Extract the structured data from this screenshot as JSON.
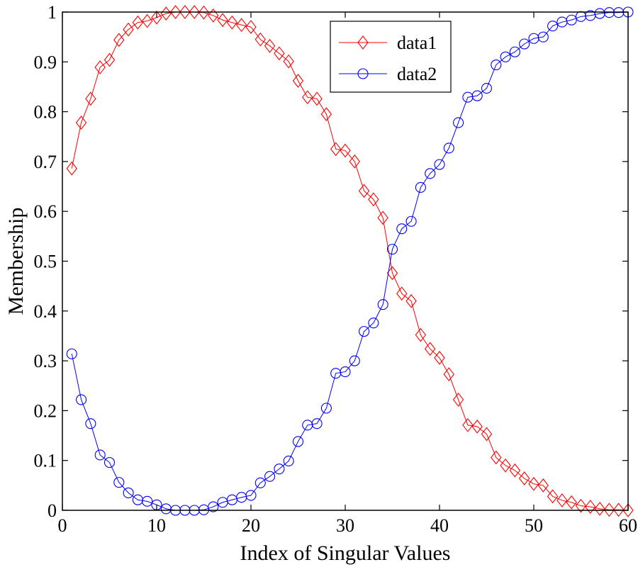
{
  "chart_data": {
    "type": "line",
    "title": "",
    "xlabel": "Index of Singular Values",
    "ylabel": "Membership",
    "xlim": [
      0,
      60
    ],
    "ylim": [
      0,
      1
    ],
    "xticks": [
      0,
      10,
      20,
      30,
      40,
      50,
      60
    ],
    "yticks": [
      0,
      0.1,
      0.2,
      0.3,
      0.4,
      0.5,
      0.6,
      0.7,
      0.8,
      0.9,
      1
    ],
    "grid": false,
    "legend_position": "top-right",
    "x": [
      1,
      2,
      3,
      4,
      5,
      6,
      7,
      8,
      9,
      10,
      11,
      12,
      13,
      14,
      15,
      16,
      17,
      18,
      19,
      20,
      21,
      22,
      23,
      24,
      25,
      26,
      27,
      28,
      29,
      30,
      31,
      32,
      33,
      34,
      35,
      36,
      37,
      38,
      39,
      40,
      41,
      42,
      43,
      44,
      45,
      46,
      47,
      48,
      49,
      50,
      51,
      52,
      53,
      54,
      55,
      56,
      57,
      58,
      59,
      60
    ],
    "series": [
      {
        "name": "data1",
        "color": "#ff0000",
        "marker": "diamond",
        "values": [
          0.686,
          0.778,
          0.826,
          0.889,
          0.904,
          0.944,
          0.965,
          0.979,
          0.982,
          0.989,
          0.997,
          1.0,
          1.0,
          1.0,
          0.999,
          0.993,
          0.984,
          0.979,
          0.974,
          0.97,
          0.945,
          0.932,
          0.917,
          0.901,
          0.862,
          0.829,
          0.826,
          0.795,
          0.725,
          0.722,
          0.7,
          0.641,
          0.624,
          0.587,
          0.476,
          0.435,
          0.42,
          0.352,
          0.324,
          0.306,
          0.273,
          0.222,
          0.171,
          0.168,
          0.153,
          0.106,
          0.09,
          0.08,
          0.064,
          0.053,
          0.05,
          0.028,
          0.02,
          0.016,
          0.009,
          0.007,
          0.003,
          0.001,
          0.001,
          0.0
        ]
      },
      {
        "name": "data2",
        "color": "#0000ff",
        "marker": "circle",
        "values": [
          0.314,
          0.222,
          0.174,
          0.111,
          0.096,
          0.056,
          0.035,
          0.021,
          0.018,
          0.011,
          0.003,
          0.0,
          0.0,
          0.0,
          0.001,
          0.007,
          0.016,
          0.021,
          0.026,
          0.03,
          0.055,
          0.068,
          0.083,
          0.099,
          0.138,
          0.171,
          0.174,
          0.205,
          0.275,
          0.278,
          0.3,
          0.359,
          0.376,
          0.413,
          0.524,
          0.565,
          0.58,
          0.648,
          0.676,
          0.694,
          0.727,
          0.778,
          0.829,
          0.832,
          0.847,
          0.894,
          0.91,
          0.92,
          0.936,
          0.947,
          0.95,
          0.972,
          0.98,
          0.984,
          0.991,
          0.993,
          0.997,
          0.999,
          0.999,
          1.0
        ]
      }
    ]
  }
}
